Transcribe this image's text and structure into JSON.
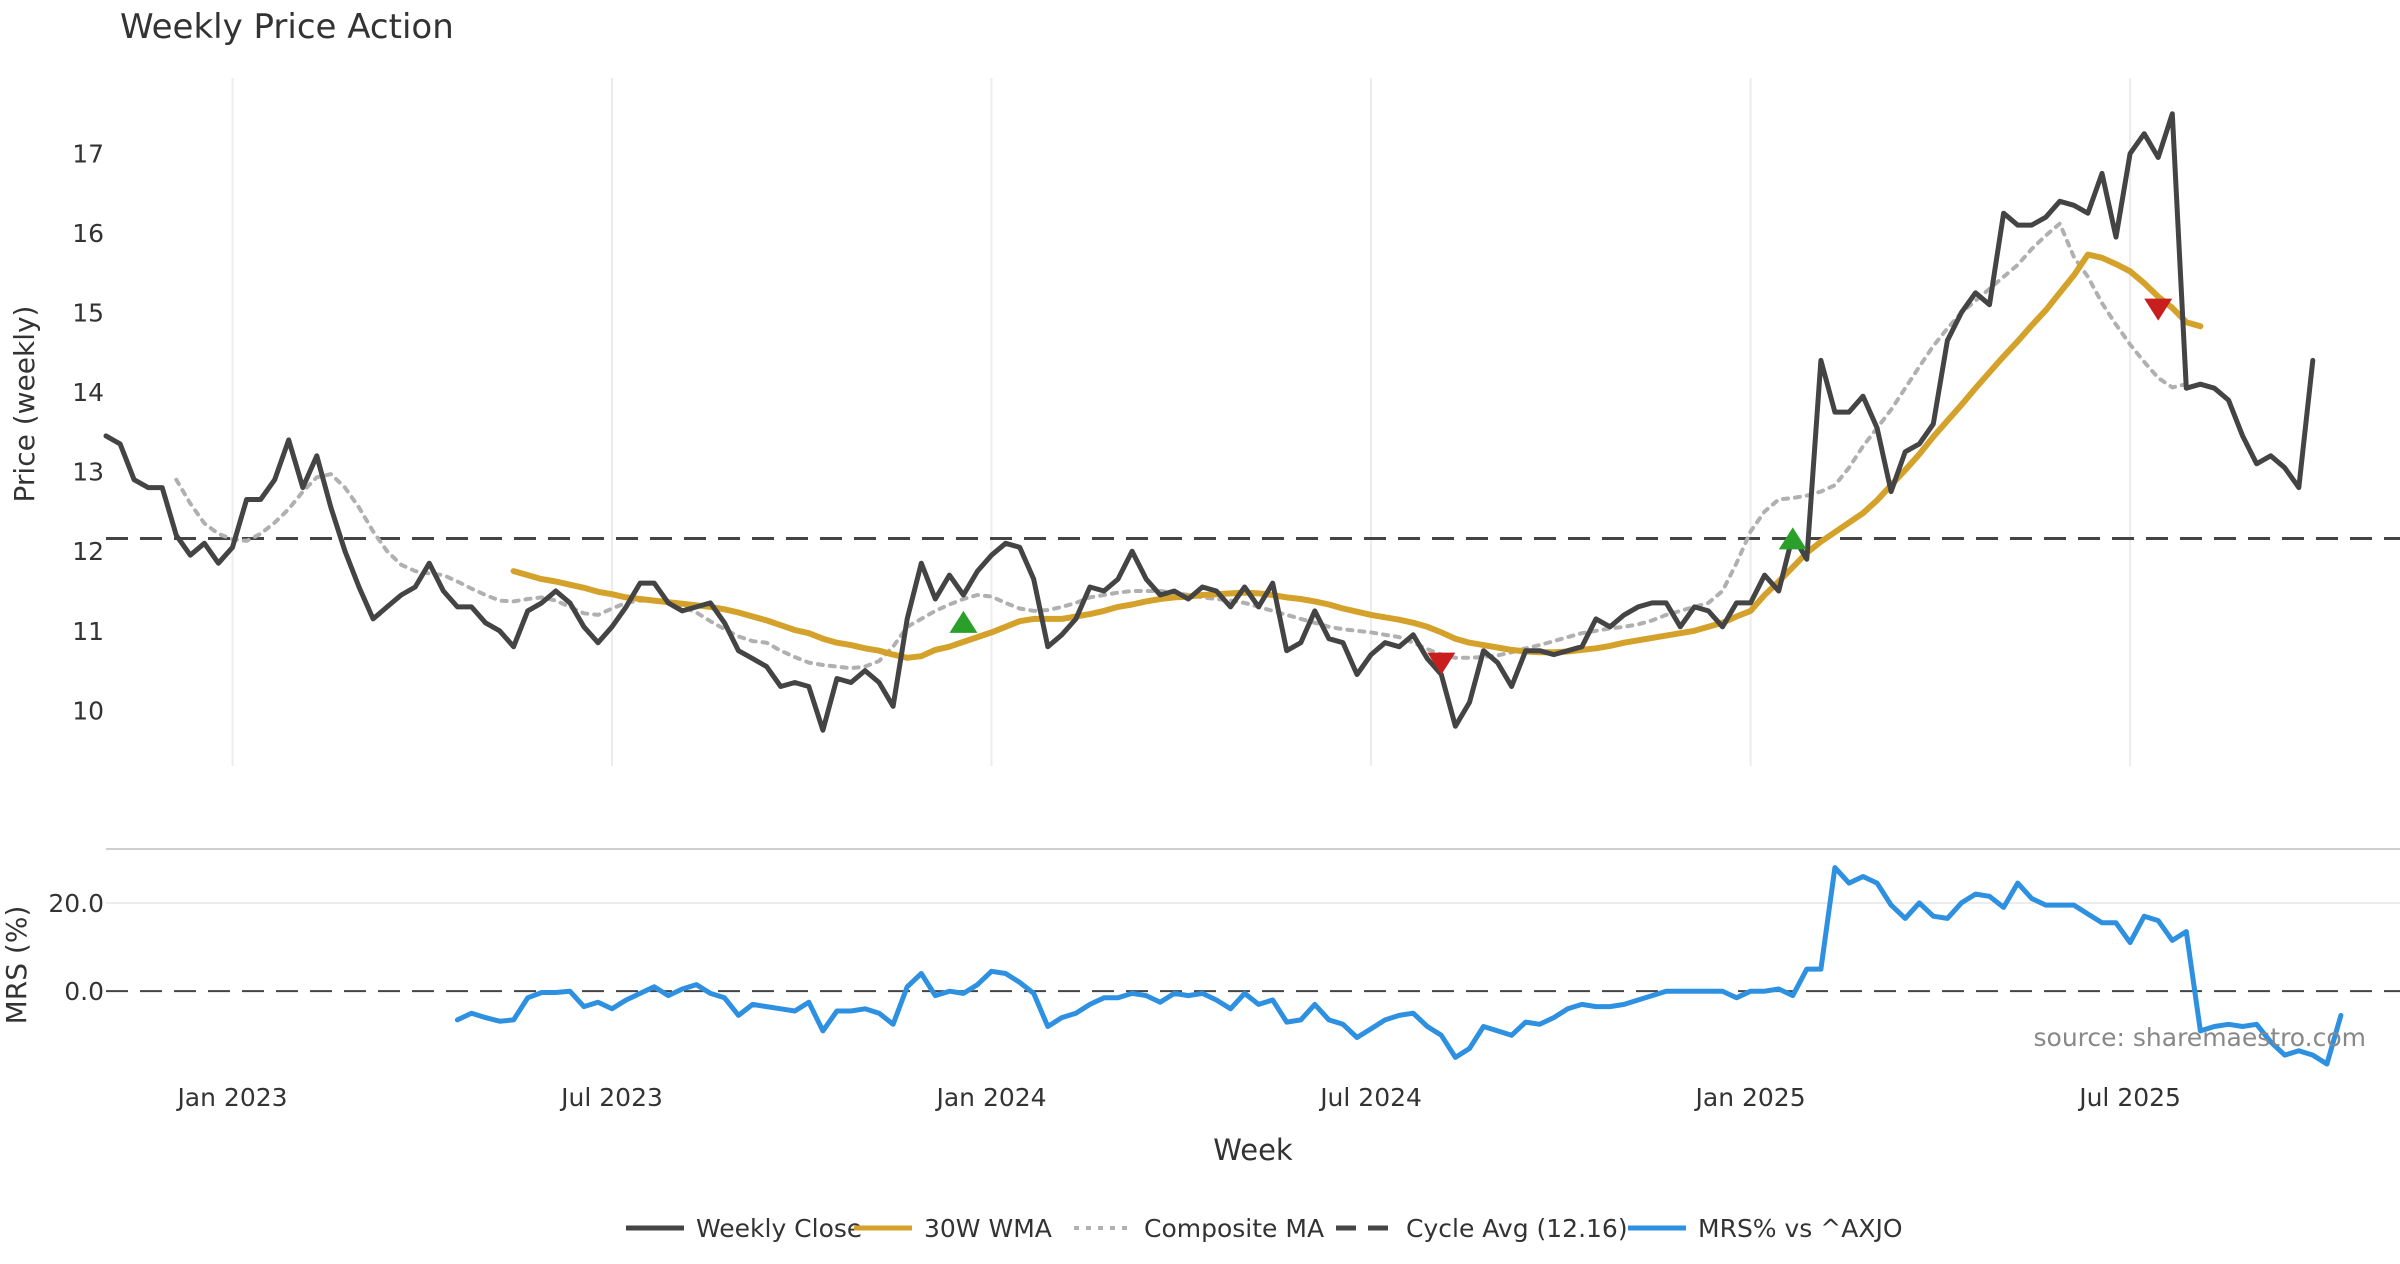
{
  "chart_data": {
    "type": "line",
    "title": "Weekly Price Action",
    "source_note": "source: sharemaestro.com",
    "price_panel": {
      "ylabel": "Price (weekly)",
      "ylim": [
        9.3,
        17.95
      ],
      "yticks": [
        10,
        11,
        12,
        13,
        14,
        15,
        16,
        17
      ],
      "cycle_avg": 12.16,
      "series": [
        {
          "name": "Weekly Close",
          "color": "#444444",
          "values": [
            13.45,
            13.35,
            12.9,
            12.8,
            12.8,
            12.2,
            11.95,
            12.1,
            11.85,
            12.05,
            12.65,
            12.65,
            12.9,
            13.4,
            12.8,
            13.2,
            12.55,
            12.0,
            11.55,
            11.15,
            11.3,
            11.45,
            11.55,
            11.85,
            11.5,
            11.3,
            11.3,
            11.1,
            11.0,
            10.8,
            11.25,
            11.35,
            11.5,
            11.35,
            11.05,
            10.85,
            11.05,
            11.3,
            11.6,
            11.6,
            11.35,
            11.25,
            11.3,
            11.35,
            11.1,
            10.75,
            10.65,
            10.55,
            10.3,
            10.35,
            10.3,
            9.75,
            10.4,
            10.35,
            10.5,
            10.35,
            10.05,
            11.15,
            11.85,
            11.4,
            11.7,
            11.45,
            11.75,
            11.95,
            12.1,
            12.05,
            11.65,
            10.8,
            10.95,
            11.15,
            11.55,
            11.5,
            11.65,
            12.0,
            11.65,
            11.45,
            11.5,
            11.4,
            11.55,
            11.5,
            11.3,
            11.55,
            11.3,
            11.6,
            10.75,
            10.85,
            11.25,
            10.9,
            10.85,
            10.45,
            10.7,
            10.85,
            10.8,
            10.95,
            10.65,
            10.45,
            9.8,
            10.1,
            10.75,
            10.6,
            10.3,
            10.75,
            10.75,
            10.7,
            10.75,
            10.8,
            11.15,
            11.05,
            11.2,
            11.3,
            11.35,
            11.35,
            11.05,
            11.3,
            11.25,
            11.05,
            11.35,
            11.35,
            11.7,
            11.5,
            12.2,
            11.9,
            14.4,
            13.75,
            13.75,
            13.95,
            13.55,
            12.75,
            13.25,
            13.35,
            13.6,
            14.65,
            15.0,
            15.25,
            15.1,
            16.25,
            16.1,
            16.1,
            16.2,
            16.4,
            16.35,
            16.25,
            16.75,
            15.95,
            17.0,
            17.25,
            16.95,
            17.5,
            14.05,
            14.1,
            14.05,
            13.9,
            13.45,
            13.1,
            13.2,
            13.05,
            12.8,
            14.4
          ]
        },
        {
          "name": "30W WMA",
          "color": "#d4a22a",
          "start_index": 29,
          "values": [
            11.75,
            11.7,
            11.65,
            11.62,
            11.58,
            11.54,
            11.49,
            11.46,
            11.42,
            11.4,
            11.38,
            11.36,
            11.34,
            11.32,
            11.3,
            11.27,
            11.23,
            11.18,
            11.13,
            11.07,
            11.01,
            10.97,
            10.9,
            10.85,
            10.82,
            10.78,
            10.75,
            10.7,
            10.66,
            10.68,
            10.76,
            10.8,
            10.86,
            10.92,
            10.98,
            11.05,
            11.12,
            11.15,
            11.15,
            11.15,
            11.18,
            11.21,
            11.25,
            11.3,
            11.33,
            11.37,
            11.4,
            11.42,
            11.43,
            11.45,
            11.46,
            11.47,
            11.48,
            11.47,
            11.45,
            11.42,
            11.4,
            11.37,
            11.33,
            11.28,
            11.24,
            11.2,
            11.17,
            11.14,
            11.1,
            11.05,
            10.98,
            10.9,
            10.85,
            10.82,
            10.79,
            10.76,
            10.74,
            10.73,
            10.73,
            10.74,
            10.76,
            10.78,
            10.81,
            10.85,
            10.88,
            10.91,
            10.94,
            10.97,
            11.0,
            11.05,
            11.1,
            11.18,
            11.25,
            11.45,
            11.62,
            11.8,
            11.98,
            12.12,
            12.24,
            12.36,
            12.48,
            12.64,
            12.83,
            13.02,
            13.22,
            13.44,
            13.64,
            13.84,
            14.05,
            14.25,
            14.45,
            14.64,
            14.84,
            15.03,
            15.25,
            15.47,
            15.73,
            15.69,
            15.61,
            15.52,
            15.37,
            15.2,
            15.06,
            14.88,
            14.83
          ]
        },
        {
          "name": "Composite MA",
          "color": "#b0b0b0",
          "start_index": 5,
          "values": [
            12.9,
            12.6,
            12.35,
            12.22,
            12.15,
            12.13,
            12.22,
            12.36,
            12.53,
            12.75,
            12.93,
            12.97,
            12.8,
            12.55,
            12.25,
            12.0,
            11.83,
            11.75,
            11.72,
            11.7,
            11.62,
            11.53,
            11.45,
            11.38,
            11.37,
            11.4,
            11.42,
            11.38,
            11.3,
            11.22,
            11.2,
            11.28,
            11.35,
            11.38,
            11.38,
            11.35,
            11.3,
            11.23,
            11.12,
            11.02,
            10.93,
            10.87,
            10.85,
            10.75,
            10.67,
            10.6,
            10.57,
            10.55,
            10.53,
            10.55,
            10.62,
            10.8,
            11.05,
            11.15,
            11.25,
            11.33,
            11.4,
            11.45,
            11.43,
            11.35,
            11.28,
            11.25,
            11.26,
            11.3,
            11.35,
            11.42,
            11.45,
            11.48,
            11.5,
            11.5,
            11.5,
            11.48,
            11.45,
            11.42,
            11.4,
            11.38,
            11.35,
            11.3,
            11.25,
            11.2,
            11.15,
            11.1,
            11.05,
            11.02,
            11.0,
            10.98,
            10.95,
            10.92,
            10.85,
            10.77,
            10.7,
            10.66,
            10.66,
            10.67,
            10.69,
            10.73,
            10.78,
            10.82,
            10.87,
            10.92,
            10.97,
            11.0,
            11.03,
            11.05,
            11.08,
            11.13,
            11.2,
            11.25,
            11.3,
            11.35,
            11.5,
            11.85,
            12.25,
            12.5,
            12.65,
            12.67,
            12.7,
            12.75,
            12.83,
            13.05,
            13.32,
            13.55,
            13.78,
            14.05,
            14.32,
            14.58,
            14.8,
            15.0,
            15.15,
            15.3,
            15.45,
            15.6,
            15.8,
            15.97,
            16.12,
            15.7,
            15.45,
            15.12,
            14.85,
            14.6,
            14.38,
            14.18,
            14.06,
            14.1
          ]
        }
      ],
      "signals": [
        {
          "type": "buy",
          "index": 61,
          "value": 11.1,
          "color": "#2aa02a"
        },
        {
          "type": "sell",
          "index": 95,
          "value": 10.6,
          "color": "#c81e1e"
        },
        {
          "type": "buy",
          "index": 120,
          "value": 12.15,
          "color": "#2aa02a"
        },
        {
          "type": "sell",
          "index": 146,
          "value": 15.05,
          "color": "#c81e1e"
        }
      ]
    },
    "mrs_panel": {
      "ylabel": "MRS (%)",
      "ylim": [
        -19,
        32
      ],
      "yticks": [
        0.0,
        20.0
      ],
      "ytick_labels": [
        "0.0",
        "20.0"
      ],
      "series": [
        {
          "name": "MRS% vs ^AXJO",
          "color": "#2e90e0",
          "start_index": 25,
          "values": [
            -6.5,
            -5.0,
            -6.0,
            -6.8,
            -6.5,
            -1.5,
            -0.3,
            -0.3,
            0.0,
            -3.5,
            -2.5,
            -4.0,
            -2.0,
            -0.5,
            1.0,
            -1.0,
            0.5,
            1.5,
            -0.5,
            -1.5,
            -5.5,
            -3.0,
            -3.5,
            -4.0,
            -4.5,
            -2.5,
            -9.0,
            -4.5,
            -4.5,
            -4.0,
            -5.0,
            -7.5,
            1.0,
            4.0,
            -1.0,
            0.0,
            -0.5,
            1.5,
            4.5,
            4.0,
            2.0,
            -0.5,
            -8.0,
            -6.0,
            -5.0,
            -3.0,
            -1.5,
            -1.5,
            -0.5,
            -1.0,
            -2.5,
            -0.5,
            -1.0,
            -0.5,
            -2.0,
            -4.0,
            -0.5,
            -3.0,
            -2.0,
            -7.0,
            -6.5,
            -3.0,
            -6.5,
            -7.5,
            -10.5,
            -8.5,
            -6.5,
            -5.5,
            -5.0,
            -8.0,
            -10.0,
            -15.0,
            -13.0,
            -8.0,
            -9.0,
            -10.0,
            -7.0,
            -7.5,
            -6.0,
            -4.0,
            -3.0,
            -3.5,
            -3.5,
            -3.0,
            -2.0,
            -1.0,
            0.0,
            0.0,
            0.0,
            0.0,
            0.0,
            -1.5,
            0.0,
            0.0,
            0.5,
            -1.0,
            5.0,
            5.0,
            28.0,
            24.5,
            26.0,
            24.5,
            19.5,
            16.5,
            20.0,
            17.0,
            16.5,
            20.0,
            22.0,
            21.5,
            19.0,
            24.5,
            21.0,
            19.5,
            19.5,
            19.5,
            17.5,
            15.5,
            15.5,
            11.0,
            17.0,
            16.0,
            11.5,
            13.5,
            -9.0,
            -8.0,
            -7.5,
            -8.0,
            -7.5,
            -11.5,
            -14.5,
            -13.5,
            -14.5,
            -16.5,
            -5.5
          ]
        }
      ]
    },
    "x": {
      "xlabel": "Week",
      "num_weeks": 161,
      "tick_labels": [
        "Jan 2023",
        "Jul 2023",
        "Jan 2024",
        "Jul 2024",
        "Jan 2025",
        "Jul 2025"
      ],
      "tick_indices": [
        9,
        36,
        63,
        90,
        117,
        144
      ]
    },
    "legend": {
      "placement": "bottom-center",
      "entries": [
        {
          "label": "Weekly Close",
          "color": "#444444",
          "style": "solid"
        },
        {
          "label": "30W WMA",
          "color": "#d4a22a",
          "style": "solid"
        },
        {
          "label": "Composite MA",
          "color": "#b0b0b0",
          "style": "dotted"
        },
        {
          "label": "Cycle Avg (12.16)",
          "color": "#444444",
          "style": "dashed"
        },
        {
          "label": "MRS% vs ^AXJO",
          "color": "#2e90e0",
          "style": "solid"
        }
      ]
    }
  }
}
